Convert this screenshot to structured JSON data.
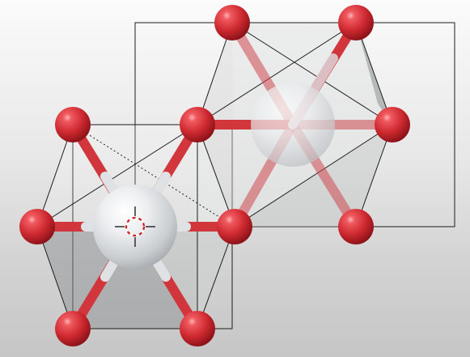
{
  "scene": {
    "background_top": "#fbfbfb",
    "background_bottom": "#c6c6c6",
    "accent": "#d63a3a",
    "metal_color": "#e4e6e8",
    "oxygen_color": "#d92f35",
    "bond_metal_color": "#dfe2e4",
    "bond_oxygen_color": "#d44c52",
    "cursor_color": "#cc1f1f",
    "cursor_icon": "3d-cursor-icon"
  }
}
